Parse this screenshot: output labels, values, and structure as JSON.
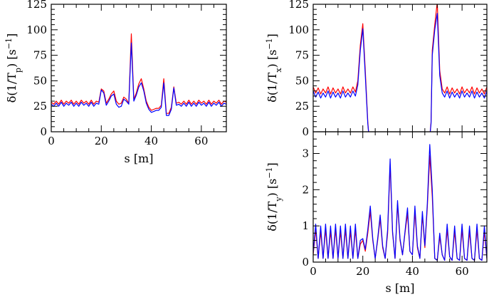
{
  "chart_data": [
    {
      "id": "tp",
      "type": "line",
      "xlabel": "s [m]",
      "ylabel": "δ(1/T_p) [s⁻¹]",
      "ylabel_parts": {
        "pre": "δ(1/T",
        "sub": "p",
        "post": ") [s",
        "sup": "−1",
        "end": "]"
      },
      "xlim": [
        0,
        70
      ],
      "ylim": [
        0,
        125
      ],
      "xticks": [
        0,
        20,
        40,
        60
      ],
      "yticks": [
        0,
        25,
        50,
        75,
        100,
        125
      ],
      "x_minor_step": 5,
      "y_minor_step": 5,
      "grid": false,
      "series": [
        {
          "color": "#ff0000",
          "x": [
            0,
            1,
            2,
            3,
            4,
            5,
            6,
            7,
            8,
            9,
            10,
            11,
            12,
            13,
            14,
            15,
            16,
            17,
            18,
            19,
            20,
            21,
            22,
            23,
            24,
            25,
            26,
            27,
            28,
            29,
            30,
            31,
            32,
            33,
            34,
            35,
            36,
            37,
            38,
            39,
            40,
            41,
            42,
            43,
            44,
            45,
            46,
            47,
            48,
            49,
            50,
            51,
            52,
            53,
            54,
            55,
            56,
            57,
            58,
            59,
            60,
            61,
            62,
            63,
            64,
            65,
            66,
            67,
            68,
            69,
            70
          ],
          "y": [
            29,
            27,
            30,
            27,
            31,
            27,
            30,
            28,
            31,
            27,
            30,
            27,
            31,
            28,
            30,
            27,
            31,
            27,
            30,
            29,
            42,
            40,
            28,
            32,
            37,
            40,
            30,
            27,
            28,
            34,
            32,
            28,
            96,
            32,
            38,
            47,
            52,
            42,
            30,
            24,
            21,
            22,
            23,
            23,
            26,
            52,
            18,
            18,
            24,
            44,
            28,
            29,
            27,
            30,
            27,
            31,
            27,
            30,
            27,
            31,
            28,
            30,
            27,
            31,
            27,
            30,
            28,
            31,
            27,
            30,
            29
          ]
        },
        {
          "color": "#0000ff",
          "x": [
            0,
            1,
            2,
            3,
            4,
            5,
            6,
            7,
            8,
            9,
            10,
            11,
            12,
            13,
            14,
            15,
            16,
            17,
            18,
            19,
            20,
            21,
            22,
            23,
            24,
            25,
            26,
            27,
            28,
            29,
            30,
            31,
            32,
            33,
            34,
            35,
            36,
            37,
            38,
            39,
            40,
            41,
            42,
            43,
            44,
            45,
            46,
            47,
            48,
            49,
            50,
            51,
            52,
            53,
            54,
            55,
            56,
            57,
            58,
            59,
            60,
            61,
            62,
            63,
            64,
            65,
            66,
            67,
            68,
            69,
            70
          ],
          "y": [
            27,
            25,
            28,
            25,
            29,
            25,
            28,
            26,
            29,
            25,
            28,
            25,
            29,
            26,
            28,
            25,
            29,
            25,
            28,
            27,
            41,
            38,
            26,
            30,
            35,
            37,
            27,
            24,
            25,
            32,
            30,
            27,
            87,
            30,
            36,
            44,
            48,
            40,
            28,
            22,
            19,
            20,
            21,
            21,
            24,
            48,
            16,
            16,
            22,
            43,
            26,
            27,
            25,
            28,
            25,
            29,
            25,
            28,
            25,
            29,
            26,
            28,
            25,
            29,
            25,
            28,
            26,
            29,
            25,
            28,
            27
          ]
        }
      ]
    },
    {
      "id": "tx",
      "type": "line",
      "xlabel": "",
      "ylabel": "δ(1/T_x) [s⁻¹]",
      "ylabel_parts": {
        "pre": "δ(1/T",
        "sub": "x",
        "post": ") [s",
        "sup": "−1",
        "end": "]"
      },
      "xlim": [
        0,
        70
      ],
      "ylim": [
        0,
        125
      ],
      "xticks": [],
      "yticks": [
        0,
        25,
        50,
        75,
        100,
        125
      ],
      "x_minor_step": 5,
      "y_minor_step": 5,
      "grid": false,
      "series": [
        {
          "color": "#ff0000",
          "x": [
            0,
            1,
            2,
            3,
            4,
            5,
            6,
            7,
            8,
            9,
            10,
            11,
            12,
            13,
            14,
            15,
            16,
            17,
            18,
            19,
            20,
            21,
            22,
            22.5,
            47,
            47.5,
            48,
            49,
            50,
            51,
            52,
            53,
            54,
            55,
            56,
            57,
            58,
            59,
            60,
            61,
            62,
            63,
            64,
            65,
            66,
            67,
            68,
            69,
            70
          ],
          "y": [
            44,
            38,
            43,
            37,
            42,
            38,
            44,
            37,
            43,
            38,
            42,
            37,
            44,
            38,
            42,
            38,
            44,
            39,
            50,
            85,
            106,
            60,
            10,
            -5,
            -5,
            10,
            80,
            105,
            127,
            60,
            42,
            38,
            44,
            37,
            43,
            38,
            42,
            37,
            44,
            38,
            42,
            38,
            44,
            37,
            43,
            38,
            42,
            37,
            44
          ]
        },
        {
          "color": "#0000ff",
          "x": [
            0,
            1,
            2,
            3,
            4,
            5,
            6,
            7,
            8,
            9,
            10,
            11,
            12,
            13,
            14,
            15,
            16,
            17,
            18,
            19,
            20,
            21,
            22,
            22.5,
            47,
            47.5,
            48,
            49,
            50,
            51,
            52,
            53,
            54,
            55,
            56,
            57,
            58,
            59,
            60,
            61,
            62,
            63,
            64,
            65,
            66,
            67,
            68,
            69,
            70
          ],
          "y": [
            40,
            34,
            39,
            33,
            38,
            34,
            40,
            33,
            39,
            34,
            38,
            33,
            40,
            34,
            38,
            34,
            40,
            35,
            46,
            80,
            101,
            55,
            8,
            -5,
            -5,
            8,
            75,
            100,
            116,
            55,
            38,
            34,
            40,
            33,
            39,
            34,
            38,
            33,
            40,
            34,
            38,
            34,
            40,
            33,
            39,
            34,
            38,
            33,
            40
          ]
        }
      ]
    },
    {
      "id": "ty",
      "type": "line",
      "xlabel": "s [m]",
      "ylabel": "δ(1/T_y) [s⁻¹]",
      "ylabel_parts": {
        "pre": "δ(1/T",
        "sub": "y",
        "post": ") [s",
        "sup": "−1",
        "end": "]"
      },
      "xlim": [
        0,
        70
      ],
      "ylim": [
        0,
        3.6
      ],
      "xticks": [
        0,
        20,
        40,
        60
      ],
      "yticks": [
        0,
        1,
        2,
        3
      ],
      "x_minor_step": 5,
      "y_minor_step": 0.2,
      "grid": false,
      "series": [
        {
          "color": "#ff0000",
          "x": [
            0,
            1,
            2,
            3,
            4,
            5,
            6,
            7,
            8,
            9,
            10,
            11,
            12,
            13,
            14,
            15,
            16,
            17,
            18,
            19,
            20,
            21,
            22,
            23,
            24,
            25,
            26,
            27,
            28,
            29,
            30,
            31,
            32,
            33,
            34,
            35,
            36,
            37,
            38,
            39,
            40,
            41,
            42,
            43,
            44,
            45,
            46,
            47,
            48,
            49,
            50,
            51,
            52,
            53,
            54,
            55,
            56,
            57,
            58,
            59,
            60,
            61,
            62,
            63,
            64,
            65,
            66,
            67,
            68,
            69,
            70
          ],
          "y": [
            0.2,
            0.9,
            0.1,
            0.85,
            0.1,
            0.9,
            0.1,
            0.85,
            0.1,
            0.9,
            0.1,
            0.85,
            0.1,
            0.9,
            0.1,
            0.85,
            0.1,
            0.9,
            0.1,
            0.5,
            0.6,
            0.3,
            0.8,
            1.4,
            0.6,
            0.1,
            0.6,
            1.2,
            0.4,
            0.1,
            0.8,
            2.7,
            0.8,
            0.1,
            1.6,
            0.6,
            0.2,
            0.8,
            1.35,
            0.3,
            0.2,
            1.4,
            0.4,
            0.1,
            1.3,
            0.4,
            1.5,
            2.95,
            1.8,
            0.1,
            0.05,
            0.7,
            0.2,
            0.05,
            0.9,
            0.15,
            0.05,
            0.85,
            0.1,
            0.05,
            0.9,
            0.1,
            0.05,
            0.85,
            0.1,
            0.05,
            0.9,
            0.1,
            0.05,
            0.85,
            0.1
          ]
        },
        {
          "color": "#0000ff",
          "x": [
            0,
            1,
            2,
            3,
            4,
            5,
            6,
            7,
            8,
            9,
            10,
            11,
            12,
            13,
            14,
            15,
            16,
            17,
            18,
            19,
            20,
            21,
            22,
            23,
            24,
            25,
            26,
            27,
            28,
            29,
            30,
            31,
            32,
            33,
            34,
            35,
            36,
            37,
            38,
            39,
            40,
            41,
            42,
            43,
            44,
            45,
            46,
            47,
            48,
            49,
            50,
            51,
            52,
            53,
            54,
            55,
            56,
            57,
            58,
            59,
            60,
            61,
            62,
            63,
            64,
            65,
            66,
            67,
            68,
            69,
            70
          ],
          "y": [
            0.25,
            1.05,
            0.1,
            1.0,
            0.1,
            1.05,
            0.1,
            1.0,
            0.1,
            1.05,
            0.1,
            1.0,
            0.1,
            1.05,
            0.1,
            1.0,
            0.1,
            1.05,
            0.1,
            0.6,
            0.65,
            0.35,
            0.9,
            1.55,
            0.65,
            0.1,
            0.65,
            1.3,
            0.45,
            0.1,
            0.9,
            2.85,
            0.85,
            0.1,
            1.7,
            0.65,
            0.2,
            0.85,
            1.5,
            0.3,
            0.2,
            1.55,
            0.45,
            0.1,
            1.4,
            0.45,
            1.6,
            3.25,
            2.0,
            0.1,
            0.05,
            0.8,
            0.2,
            0.05,
            1.05,
            0.15,
            0.05,
            1.0,
            0.1,
            0.05,
            1.05,
            0.1,
            0.05,
            1.0,
            0.1,
            0.05,
            1.05,
            0.1,
            0.05,
            1.0,
            0.1
          ]
        }
      ]
    }
  ]
}
